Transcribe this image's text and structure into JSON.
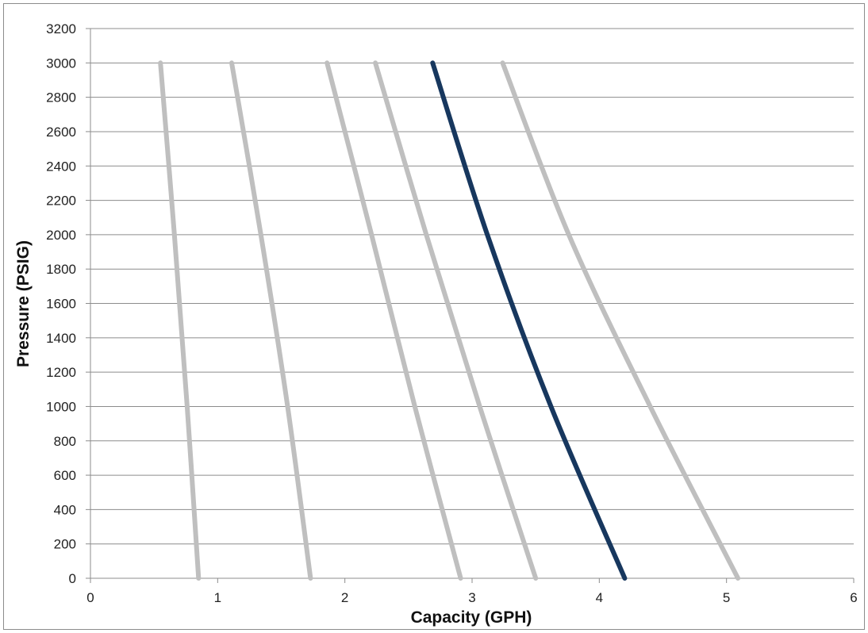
{
  "chart_data": {
    "type": "line",
    "title": "",
    "xlabel": "Capacity (GPH)",
    "ylabel": "Pressure (PSIG)",
    "xlim": [
      0,
      6
    ],
    "ylim": [
      0,
      3200
    ],
    "xticks": [
      0,
      1,
      2,
      3,
      4,
      5,
      6
    ],
    "yticks": [
      0,
      200,
      400,
      600,
      800,
      1000,
      1200,
      1400,
      1600,
      1800,
      2000,
      2200,
      2400,
      2600,
      2800,
      3000,
      3200
    ],
    "grid": "horizontal",
    "legend": "none",
    "series": [
      {
        "color": "#bfbfbf",
        "points": [
          [
            0.85,
            0
          ],
          [
            0.76,
            1000
          ],
          [
            0.66,
            2000
          ],
          [
            0.55,
            3000
          ]
        ]
      },
      {
        "color": "#bfbfbf",
        "points": [
          [
            1.73,
            0
          ],
          [
            1.55,
            1000
          ],
          [
            1.34,
            2000
          ],
          [
            1.11,
            3000
          ]
        ]
      },
      {
        "color": "#bfbfbf",
        "points": [
          [
            2.91,
            0
          ],
          [
            2.55,
            1000
          ],
          [
            2.21,
            2000
          ],
          [
            1.86,
            3000
          ]
        ]
      },
      {
        "color": "#bfbfbf",
        "points": [
          [
            3.5,
            0
          ],
          [
            3.06,
            1000
          ],
          [
            2.64,
            2000
          ],
          [
            2.24,
            3000
          ]
        ]
      },
      {
        "color": "#17375e",
        "points": [
          [
            4.2,
            0
          ],
          [
            3.62,
            1000
          ],
          [
            3.12,
            2000
          ],
          [
            2.69,
            3000
          ]
        ]
      },
      {
        "color": "#bfbfbf",
        "points": [
          [
            5.09,
            0
          ],
          [
            4.4,
            1000
          ],
          [
            3.76,
            2000
          ],
          [
            3.24,
            3000
          ]
        ]
      }
    ]
  }
}
